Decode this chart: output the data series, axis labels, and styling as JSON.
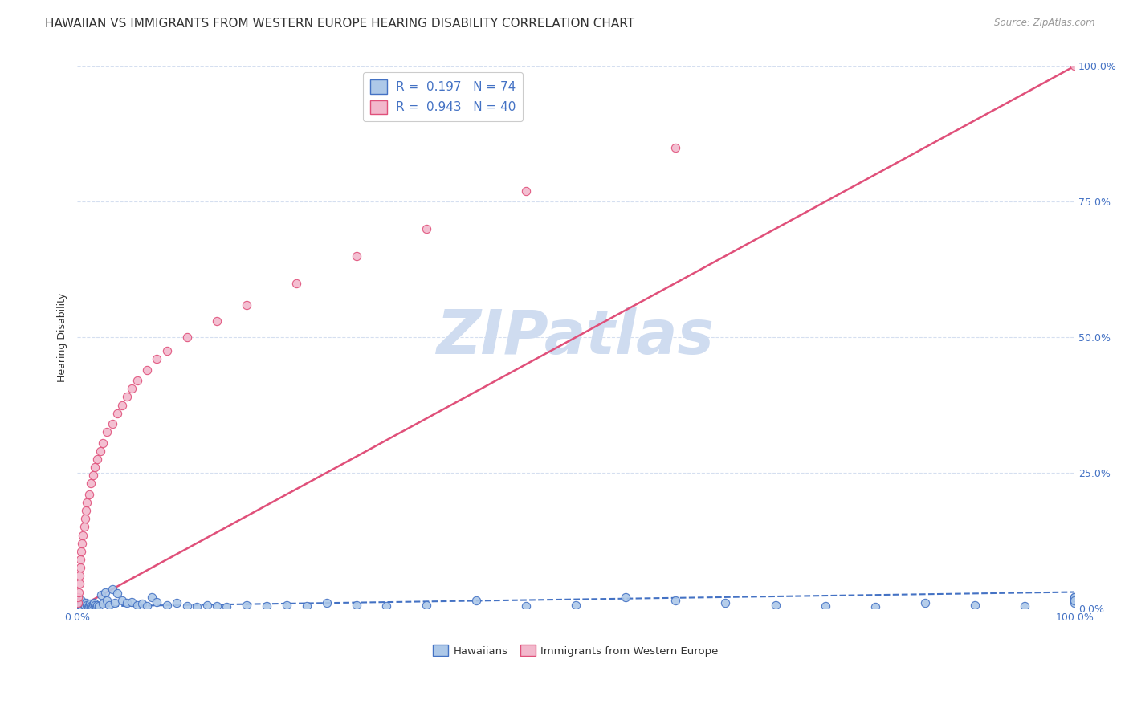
{
  "title": "HAWAIIAN VS IMMIGRANTS FROM WESTERN EUROPE HEARING DISABILITY CORRELATION CHART",
  "source": "Source: ZipAtlas.com",
  "ylabel": "Hearing Disability",
  "watermark": "ZIPatlas",
  "hawaiians": {
    "label": "Hawaiians",
    "R": 0.197,
    "N": 74,
    "scatter_facecolor": "#adc8e8",
    "scatter_edgecolor": "#4472c4",
    "line_color": "#4472c4",
    "line_style": "--",
    "x": [
      0.0,
      0.05,
      0.1,
      0.15,
      0.2,
      0.25,
      0.3,
      0.35,
      0.4,
      0.5,
      0.6,
      0.7,
      0.8,
      0.9,
      1.0,
      1.1,
      1.2,
      1.3,
      1.4,
      1.5,
      1.6,
      1.7,
      1.8,
      1.9,
      2.0,
      2.2,
      2.4,
      2.6,
      2.8,
      3.0,
      3.2,
      3.5,
      3.8,
      4.0,
      4.5,
      5.0,
      5.5,
      6.0,
      6.5,
      7.0,
      7.5,
      8.0,
      9.0,
      10.0,
      11.0,
      12.0,
      13.0,
      14.0,
      15.0,
      17.0,
      19.0,
      21.0,
      23.0,
      25.0,
      28.0,
      31.0,
      35.0,
      40.0,
      45.0,
      50.0,
      55.0,
      60.0,
      65.0,
      70.0,
      75.0,
      80.0,
      85.0,
      90.0,
      95.0,
      100.0,
      100.0,
      100.0,
      100.0,
      100.0
    ],
    "y": [
      0.5,
      1.0,
      0.3,
      0.8,
      0.5,
      1.2,
      0.4,
      0.6,
      1.5,
      0.3,
      0.8,
      0.5,
      0.4,
      1.0,
      0.6,
      0.3,
      0.5,
      0.8,
      0.4,
      0.3,
      0.7,
      1.0,
      0.5,
      0.3,
      0.6,
      0.4,
      2.5,
      0.8,
      3.0,
      1.5,
      0.5,
      3.5,
      1.0,
      2.8,
      1.5,
      1.0,
      1.2,
      0.5,
      0.8,
      0.4,
      2.0,
      1.2,
      0.5,
      1.0,
      0.4,
      0.3,
      0.5,
      0.4,
      0.3,
      0.5,
      0.4,
      0.5,
      0.4,
      1.0,
      0.5,
      0.4,
      0.5,
      1.5,
      0.4,
      0.5,
      2.0,
      1.5,
      1.0,
      0.5,
      0.4,
      0.3,
      1.0,
      0.5,
      0.4,
      2.0,
      1.5,
      1.0,
      2.0,
      1.5
    ],
    "trend_x": [
      0.0,
      100.0
    ],
    "trend_y": [
      0.3,
      3.0
    ]
  },
  "immigrants": {
    "label": "Immigrants from Western Europe",
    "R": 0.943,
    "N": 40,
    "scatter_facecolor": "#f2b8cc",
    "scatter_edgecolor": "#e0507a",
    "line_color": "#e0507a",
    "line_style": "-",
    "x": [
      0.05,
      0.1,
      0.15,
      0.2,
      0.25,
      0.3,
      0.35,
      0.4,
      0.5,
      0.6,
      0.7,
      0.8,
      0.9,
      1.0,
      1.2,
      1.4,
      1.6,
      1.8,
      2.0,
      2.3,
      2.6,
      3.0,
      3.5,
      4.0,
      4.5,
      5.0,
      5.5,
      6.0,
      7.0,
      8.0,
      9.0,
      11.0,
      14.0,
      17.0,
      22.0,
      28.0,
      35.0,
      45.0,
      60.0,
      100.0
    ],
    "y": [
      1.0,
      2.0,
      3.0,
      4.5,
      6.0,
      7.5,
      9.0,
      10.5,
      12.0,
      13.5,
      15.0,
      16.5,
      18.0,
      19.5,
      21.0,
      23.0,
      24.5,
      26.0,
      27.5,
      29.0,
      30.5,
      32.5,
      34.0,
      36.0,
      37.5,
      39.0,
      40.5,
      42.0,
      44.0,
      46.0,
      47.5,
      50.0,
      53.0,
      56.0,
      60.0,
      65.0,
      70.0,
      77.0,
      85.0,
      100.0
    ],
    "trend_x": [
      0.0,
      100.0
    ],
    "trend_y": [
      0.0,
      100.0
    ]
  },
  "xlim": [
    0.0,
    100.0
  ],
  "ylim": [
    0.0,
    100.0
  ],
  "right_yticks": [
    0.0,
    25.0,
    50.0,
    75.0,
    100.0
  ],
  "right_ytick_labels": [
    "0.0%",
    "25.0%",
    "50.0%",
    "75.0%",
    "100.0%"
  ],
  "xtick_labels": [
    "0.0%",
    "100.0%"
  ],
  "bg_color": "#ffffff",
  "grid_color": "#d5dff0",
  "title_fontsize": 11,
  "legend_fontsize": 11,
  "watermark_color": "#cfdcf0",
  "watermark_fontsize": 55
}
